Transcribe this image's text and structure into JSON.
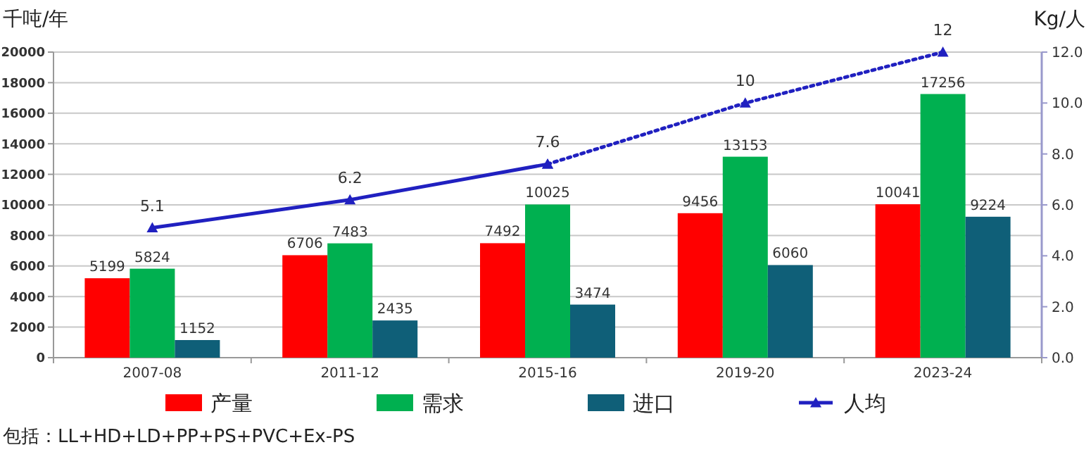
{
  "chart_data": {
    "type": "bar",
    "categories": [
      "2007-08",
      "2011-12",
      "2015-16",
      "2019-20",
      "2023-24"
    ],
    "ylabel": "千吨/年",
    "y2label": "Kg/人",
    "ylim": [
      0,
      20000
    ],
    "yticks": [
      0,
      2000,
      4000,
      6000,
      8000,
      10000,
      12000,
      14000,
      16000,
      18000,
      20000
    ],
    "y2lim": [
      0,
      12
    ],
    "y2ticks": [
      {
        "value": 0,
        "label": "0.0"
      },
      {
        "value": 2,
        "label": "2.0"
      },
      {
        "value": 4,
        "label": "4.0"
      },
      {
        "value": 6,
        "label": "6.0"
      },
      {
        "value": 8,
        "label": "8.0"
      },
      {
        "value": 10,
        "label": "10.0"
      },
      {
        "value": 12,
        "label": "12.0"
      }
    ],
    "series": [
      {
        "name": "产量",
        "color": "#ff0000",
        "values": [
          5199,
          6706,
          7492,
          9456,
          10041
        ]
      },
      {
        "name": "需求",
        "color": "#00b050",
        "values": [
          5824,
          7483,
          10025,
          13153,
          17256
        ]
      },
      {
        "name": "进口",
        "color": "#0f5f78",
        "values": [
          1152,
          2435,
          3474,
          6060,
          9224
        ]
      },
      {
        "name": "人均",
        "type": "line",
        "axis": "y2",
        "color": "#2020c0",
        "line_style": "solid",
        "marker": "triangle",
        "values": [
          5.1,
          6.2,
          7.6,
          null,
          null
        ]
      },
      {
        "type": "line",
        "axis": "y2",
        "color": "#2020c0",
        "line_style": "dotted",
        "marker": "triangle",
        "values": [
          null,
          null,
          7.6,
          10,
          12
        ],
        "value_labels": [
          null,
          null,
          null,
          "10",
          "12"
        ]
      }
    ],
    "data_labels": true,
    "grid": "y",
    "legend": "bottom",
    "annotations": [
      "包括：LL+HD+LD+PP+PS+PVC+Ex-PS"
    ]
  }
}
